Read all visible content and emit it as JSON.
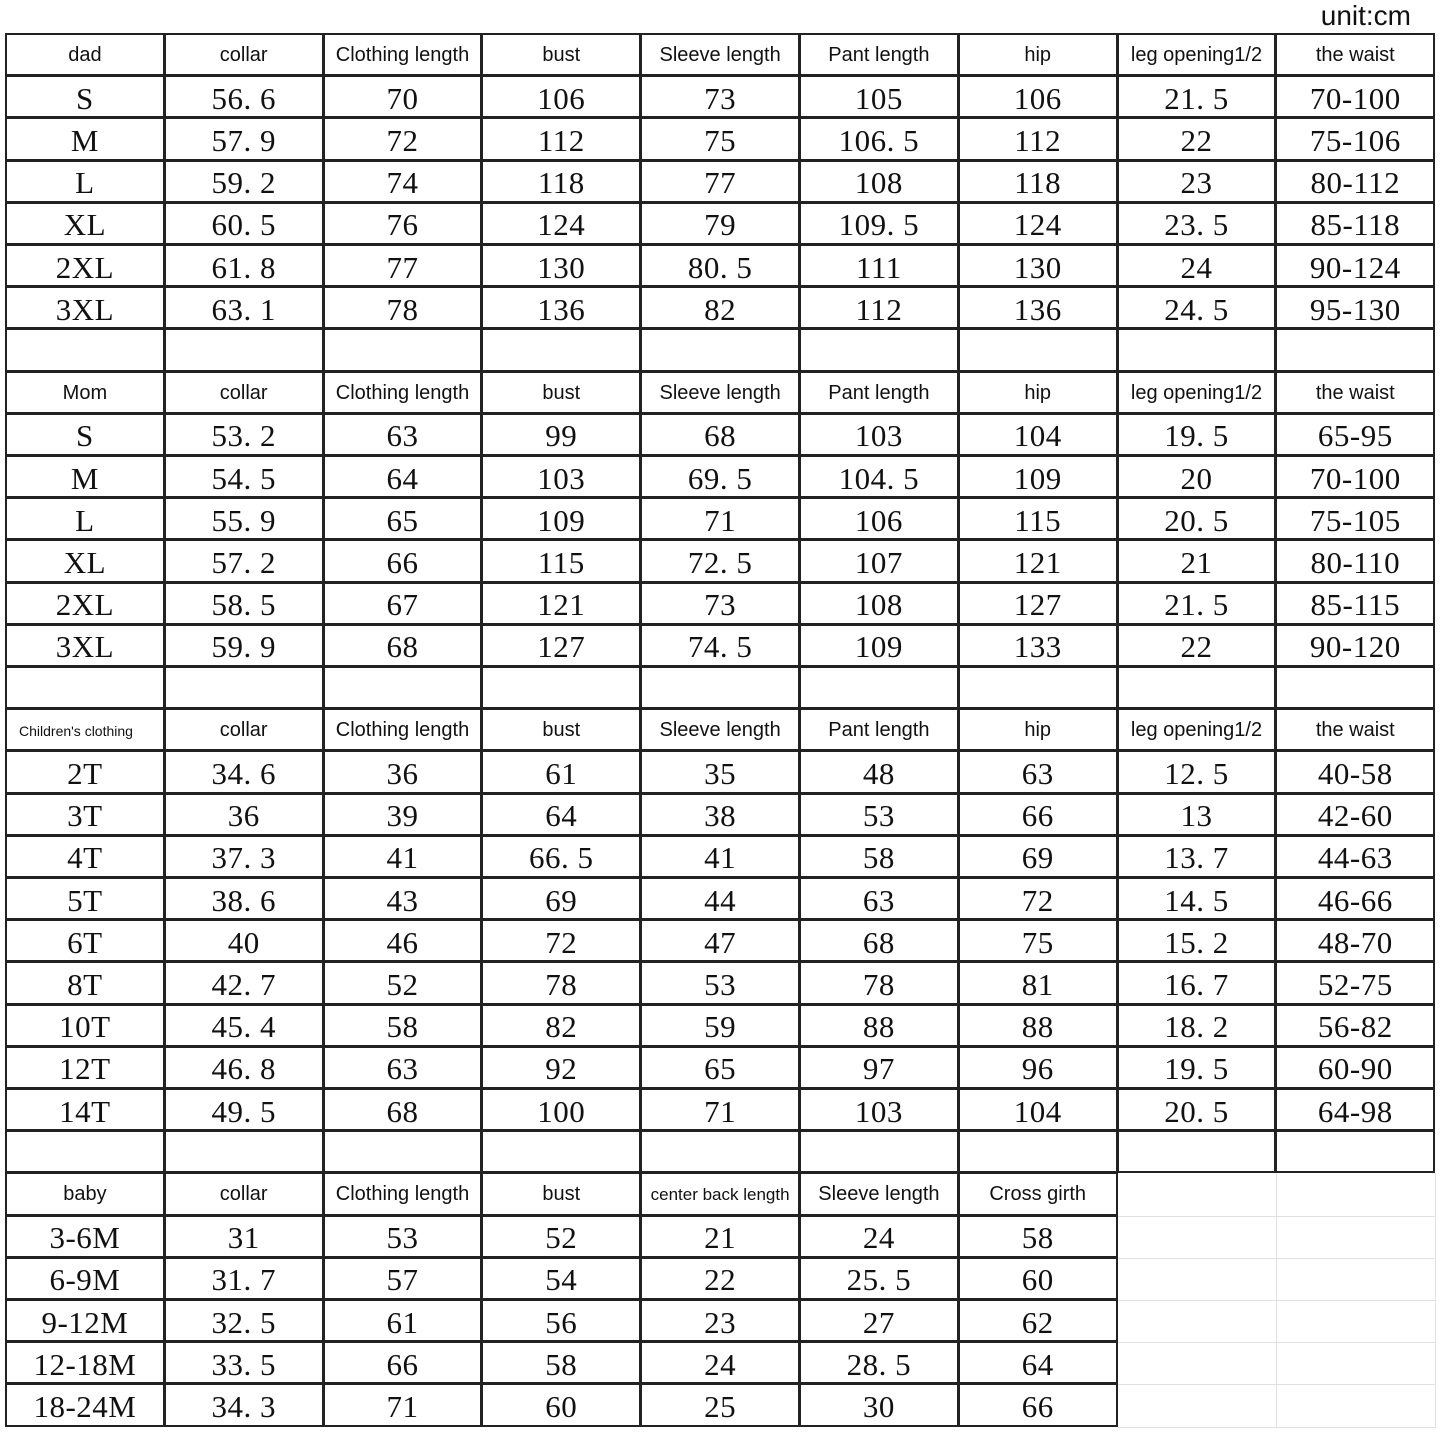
{
  "unit": "unit:cm",
  "sections": [
    {
      "headers": [
        "dad",
        "collar",
        "Clothing length",
        "bust",
        "Sleeve length",
        "Pant length",
        "hip",
        "leg opening1/2",
        "the waist"
      ],
      "rows": [
        [
          "S",
          "56. 6",
          "70",
          "106",
          "73",
          "105",
          "106",
          "21. 5",
          "70-100"
        ],
        [
          "M",
          "57. 9",
          "72",
          "112",
          "75",
          "106. 5",
          "112",
          "22",
          "75-106"
        ],
        [
          "L",
          "59. 2",
          "74",
          "118",
          "77",
          "108",
          "118",
          "23",
          "80-112"
        ],
        [
          "XL",
          "60. 5",
          "76",
          "124",
          "79",
          "109. 5",
          "124",
          "23. 5",
          "85-118"
        ],
        [
          "2XL",
          "61. 8",
          "77",
          "130",
          "80. 5",
          "111",
          "130",
          "24",
          "90-124"
        ],
        [
          "3XL",
          "63. 1",
          "78",
          "136",
          "82",
          "112",
          "136",
          "24. 5",
          "95-130"
        ]
      ]
    },
    {
      "headers": [
        "Mom",
        "collar",
        "Clothing length",
        "bust",
        "Sleeve length",
        "Pant length",
        "hip",
        "leg opening1/2",
        "the waist"
      ],
      "rows": [
        [
          "S",
          "53. 2",
          "63",
          "99",
          "68",
          "103",
          "104",
          "19. 5",
          "65-95"
        ],
        [
          "M",
          "54. 5",
          "64",
          "103",
          "69. 5",
          "104. 5",
          "109",
          "20",
          "70-100"
        ],
        [
          "L",
          "55. 9",
          "65",
          "109",
          "71",
          "106",
          "115",
          "20. 5",
          "75-105"
        ],
        [
          "XL",
          "57. 2",
          "66",
          "115",
          "72. 5",
          "107",
          "121",
          "21",
          "80-110"
        ],
        [
          "2XL",
          "58. 5",
          "67",
          "121",
          "73",
          "108",
          "127",
          "21. 5",
          "85-115"
        ],
        [
          "3XL",
          "59. 9",
          "68",
          "127",
          "74. 5",
          "109",
          "133",
          "22",
          "90-120"
        ]
      ]
    },
    {
      "headers": [
        "Children's clothing",
        "collar",
        "Clothing length",
        "bust",
        "Sleeve length",
        "Pant length",
        "hip",
        "leg opening1/2",
        "the waist"
      ],
      "rows": [
        [
          "2T",
          "34. 6",
          "36",
          "61",
          "35",
          "48",
          "63",
          "12. 5",
          "40-58"
        ],
        [
          "3T",
          "36",
          "39",
          "64",
          "38",
          "53",
          "66",
          "13",
          "42-60"
        ],
        [
          "4T",
          "37. 3",
          "41",
          "66. 5",
          "41",
          "58",
          "69",
          "13. 7",
          "44-63"
        ],
        [
          "5T",
          "38. 6",
          "43",
          "69",
          "44",
          "63",
          "72",
          "14. 5",
          "46-66"
        ],
        [
          "6T",
          "40",
          "46",
          "72",
          "47",
          "68",
          "75",
          "15. 2",
          "48-70"
        ],
        [
          "8T",
          "42. 7",
          "52",
          "78",
          "53",
          "78",
          "81",
          "16. 7",
          "52-75"
        ],
        [
          "10T",
          "45. 4",
          "58",
          "82",
          "59",
          "88",
          "88",
          "18. 2",
          "56-82"
        ],
        [
          "12T",
          "46. 8",
          "63",
          "92",
          "65",
          "97",
          "96",
          "19. 5",
          "60-90"
        ],
        [
          "14T",
          "49. 5",
          "68",
          "100",
          "71",
          "103",
          "104",
          "20. 5",
          "64-98"
        ]
      ]
    },
    {
      "headers": [
        "baby",
        "collar",
        "Clothing length",
        "bust",
        "center back length",
        "Sleeve length",
        "Cross girth"
      ],
      "rows": [
        [
          "3-6M",
          "31",
          "53",
          "52",
          "21",
          "24",
          "58"
        ],
        [
          "6-9M",
          "31. 7",
          "57",
          "54",
          "22",
          "25. 5",
          "60"
        ],
        [
          "9-12M",
          "32. 5",
          "61",
          "56",
          "23",
          "27",
          "62"
        ],
        [
          "12-18M",
          "33. 5",
          "66",
          "58",
          "24",
          "28. 5",
          "64"
        ],
        [
          "18-24M",
          "34. 3",
          "71",
          "60",
          "25",
          "30",
          "66"
        ]
      ]
    }
  ]
}
